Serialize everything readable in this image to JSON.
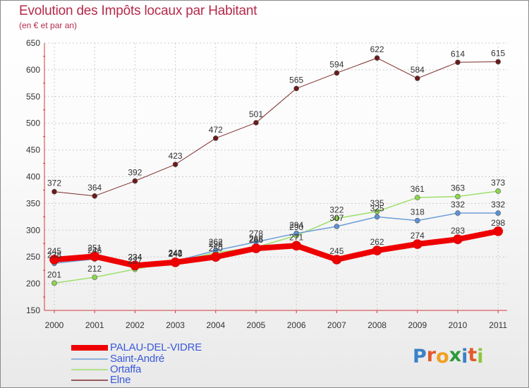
{
  "title": "Evolution des Impôts locaux par Habitant",
  "subtitle": "(en € et par an)",
  "logo": [
    "P",
    "r",
    "o",
    "x",
    "i",
    "t",
    "i"
  ],
  "logo_colors": [
    "#3b80c9",
    "#e35a2b",
    "#f0a020",
    "#2f9a3c",
    "#3b80c9",
    "#e35a2b",
    "#8cc63e"
  ],
  "chart_data": {
    "type": "line",
    "title": "Evolution des Impôts locaux par Habitant",
    "subtitle": "(en € et par an)",
    "xlabel": "",
    "ylabel": "",
    "x": [
      "2000",
      "2001",
      "2002",
      "2003",
      "2004",
      "2005",
      "2006",
      "2007",
      "2008",
      "2009",
      "2010",
      "2011"
    ],
    "ylim": [
      150,
      650
    ],
    "yticks": [
      "150",
      "200",
      "250",
      "300",
      "350",
      "400",
      "450",
      "500",
      "550",
      "600",
      "650"
    ],
    "grid": true,
    "legend_position": "bottom-left",
    "series": [
      {
        "name": "PALAU-DEL-VIDRE",
        "color": "#ee0000",
        "width": 8,
        "marker": "#ee0000",
        "values": [
          245,
          251,
          234,
          240,
          250,
          266,
          271,
          245,
          262,
          274,
          283,
          298
        ]
      },
      {
        "name": "Saint-André",
        "color": "#6e9ed6",
        "width": 1.5,
        "marker": "#5b92d6",
        "values": [
          238,
          246,
          234,
          242,
          262,
          278,
          294,
          307,
          325,
          318,
          332,
          332
        ]
      },
      {
        "name": "Ortaffa",
        "color": "#9ee06a",
        "width": 1.5,
        "marker": "#8cd64f",
        "values": [
          201,
          212,
          227,
          241,
          258,
          268,
          290,
          322,
          335,
          361,
          363,
          373
        ]
      },
      {
        "name": "Elne",
        "color": "#7e2a2a",
        "width": 1,
        "marker": "#6a1a1a",
        "values": [
          372,
          364,
          392,
          423,
          472,
          501,
          565,
          594,
          622,
          584,
          614,
          615
        ]
      }
    ],
    "data_labels": [
      [
        "245",
        "251",
        "234",
        "240",
        "250",
        "266",
        "271",
        "245",
        "262",
        "274",
        "283",
        "298"
      ],
      [
        "238",
        "246",
        "234",
        "242",
        "262",
        "278",
        "294",
        "307",
        "325",
        "318",
        "332",
        "332"
      ],
      [
        "201",
        "212",
        "227",
        "241",
        "258",
        "268",
        "290",
        "322",
        "335",
        "361",
        "363",
        "373"
      ],
      [
        "372",
        "364",
        "392",
        "423",
        "472",
        "501",
        "565",
        "594",
        "622",
        "584",
        "614",
        "615"
      ]
    ]
  }
}
